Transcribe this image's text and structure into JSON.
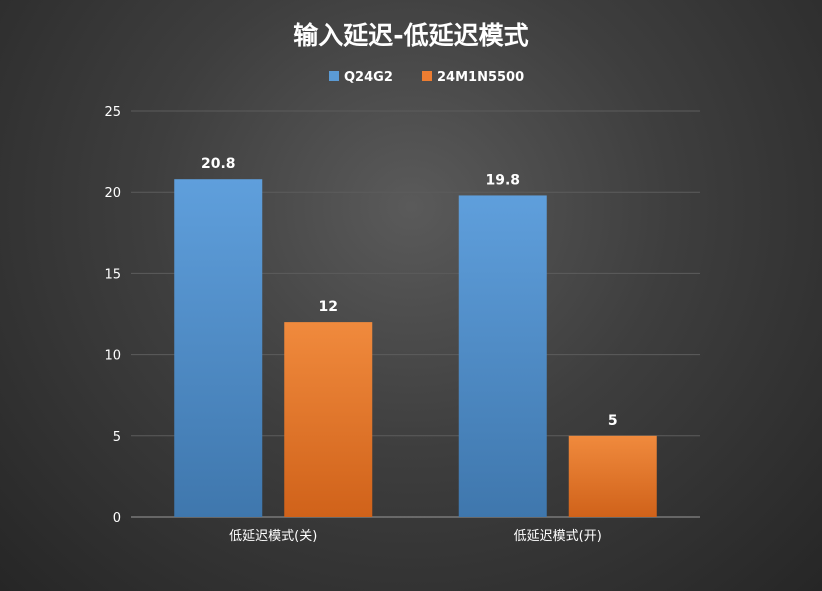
{
  "chart_data": {
    "type": "bar",
    "title": "输入延迟-低延迟模式",
    "categories": [
      "低延迟模式(关)",
      "低延迟模式(开)"
    ],
    "series": [
      {
        "name": "Q24G2",
        "values": [
          20.8,
          19.8
        ],
        "color": "#5b9bd5"
      },
      {
        "name": "24M1N5500",
        "values": [
          12,
          5
        ],
        "color": "#ed7d31"
      }
    ],
    "data_labels": [
      [
        "20.8",
        "19.8"
      ],
      [
        "12",
        "5"
      ]
    ],
    "yticks": [
      0,
      5,
      10,
      15,
      20,
      25
    ],
    "ylim": [
      0,
      25
    ],
    "xlabel": "",
    "ylabel": "",
    "grid": true,
    "legend_position": "top",
    "background": "#3c3c3c"
  }
}
